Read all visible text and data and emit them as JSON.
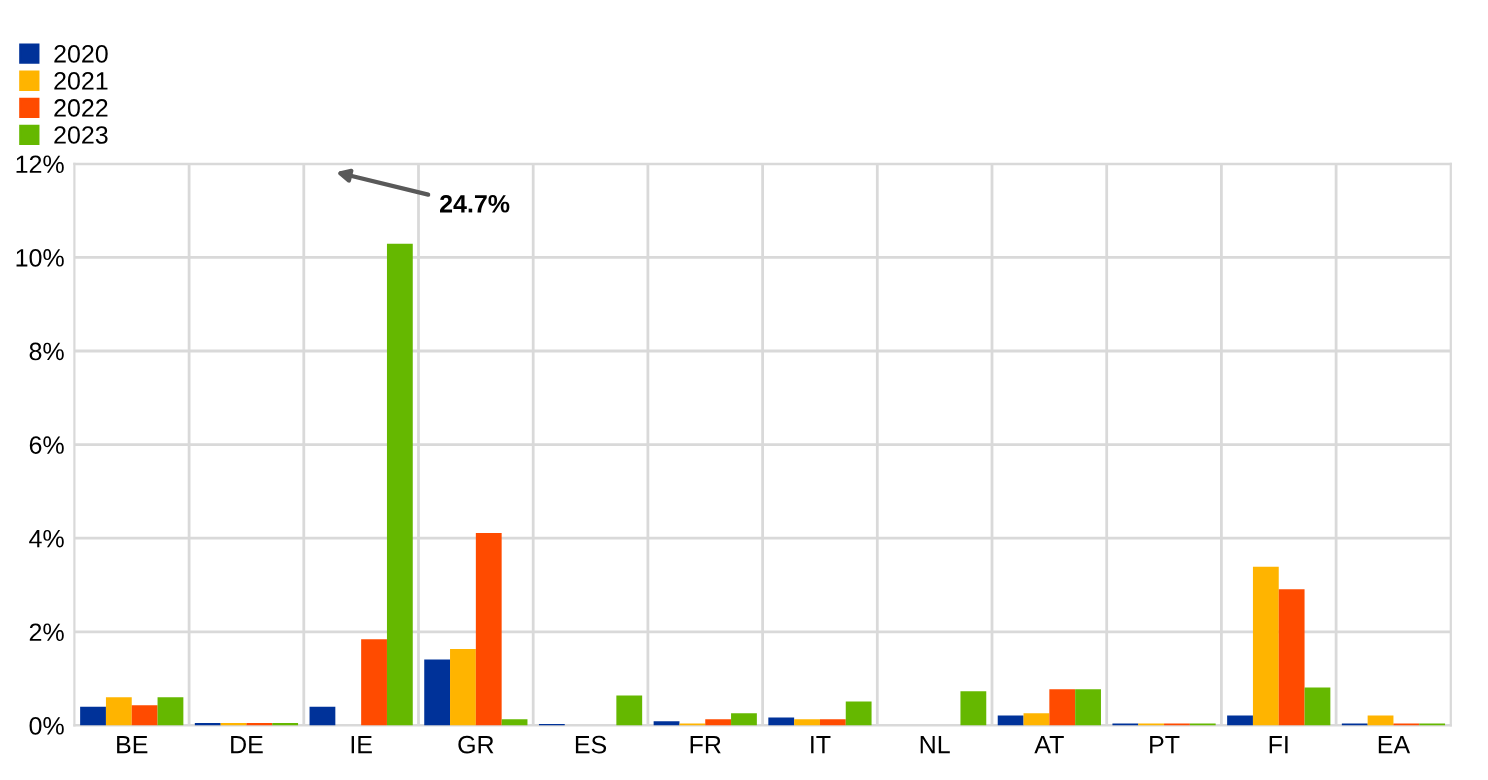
{
  "chart_data": {
    "type": "bar",
    "categories": [
      "BE",
      "DE",
      "IE",
      "GR",
      "ES",
      "FR",
      "IT",
      "NL",
      "AT",
      "PT",
      "FI",
      "EA"
    ],
    "series": [
      {
        "name": "2020",
        "color": "#003299",
        "values": [
          0.4,
          0.05,
          0.4,
          1.41,
          0.03,
          0.09,
          0.17,
          0,
          0.21,
          0.04,
          0.21,
          0.04
        ]
      },
      {
        "name": "2021",
        "color": "#ffb400",
        "values": [
          0.6,
          0.05,
          null,
          1.63,
          0,
          0.04,
          0.13,
          0,
          0.26,
          0.04,
          3.39,
          0.21
        ]
      },
      {
        "name": "2022",
        "color": "#ff4b00",
        "values": [
          0.43,
          0.05,
          1.84,
          4.11,
          0,
          0.13,
          0.13,
          0,
          0.77,
          0.04,
          2.91,
          0.04
        ]
      },
      {
        "name": "2023",
        "color": "#65b800",
        "values": [
          0.6,
          0.05,
          10.29,
          0.13,
          0.64,
          0.26,
          0.51,
          0.73,
          0.77,
          0.04,
          0.81,
          0.04
        ]
      }
    ],
    "ylim": [
      0,
      12
    ],
    "yticks": [
      {
        "value": 0,
        "label": "0%"
      },
      {
        "value": 2,
        "label": "2%"
      },
      {
        "value": 4,
        "label": "4%"
      },
      {
        "value": 6,
        "label": "6%"
      },
      {
        "value": 8,
        "label": "8%"
      },
      {
        "value": 10,
        "label": "10%"
      },
      {
        "value": 12,
        "label": "12%"
      }
    ],
    "annotations": [
      "24.7%"
    ],
    "grid": true,
    "legend": "top left"
  }
}
